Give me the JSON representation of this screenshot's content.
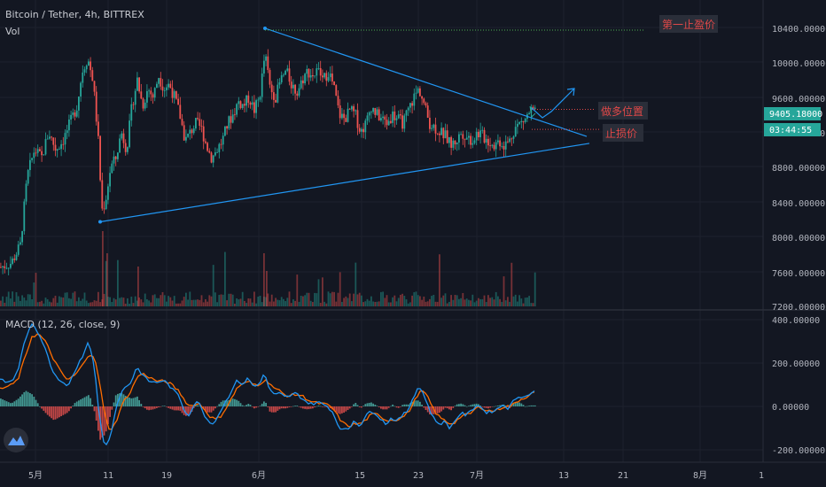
{
  "header": {
    "title": "Bitcoin / Tether, 4h, BITTREX",
    "volume_label": "Vol",
    "macd_label": "MACD (12, 26, close, 9)"
  },
  "price_axis": {
    "ticks": [
      "10400.00000",
      "10000.00000",
      "9600.00000",
      "9200.00000",
      "8800.00000",
      "8400.00000",
      "8000.00000",
      "7600.00000",
      "7200.00000"
    ],
    "current_price": "9405.18000",
    "countdown": "03:44:55"
  },
  "macd_axis": {
    "ticks": [
      "400.00000",
      "200.00000",
      "0.00000",
      "-200.00000"
    ]
  },
  "time_axis": {
    "ticks": [
      "5月",
      "11",
      "19",
      "6月",
      "15",
      "23",
      "7月",
      "13",
      "21",
      "8月",
      "1"
    ]
  },
  "annotations": {
    "take_profit": "第一止盈价",
    "long_entry": "做多位置",
    "stop_loss": "止损价"
  },
  "colors": {
    "up": "#26a69a",
    "down": "#ef5350",
    "trendline": "#2196f3",
    "macd": "#2196f3",
    "signal": "#ff6d00",
    "background": "#131722"
  },
  "chart_data": {
    "type": "candlestick",
    "symbol": "Bitcoin / Tether",
    "interval": "4h",
    "exchange": "BITTREX",
    "price_range": [
      7200,
      10600
    ],
    "macd_range": [
      -230,
      420
    ],
    "trendlines": {
      "descending": {
        "from": {
          "date": "6月1",
          "price": 10390
        },
        "to": {
          "date": "7月17",
          "price": 9150
        }
      },
      "ascending": {
        "from": {
          "date": "5月10",
          "price": 8170
        },
        "to": {
          "date": "7月17",
          "price": 9070
        }
      },
      "take_profit_level": 10370,
      "long_entry_level": 9460,
      "stop_loss_level": 9230
    },
    "price_path": [
      [
        0,
        7650
      ],
      [
        12,
        7700
      ],
      [
        22,
        7900
      ],
      [
        30,
        8700
      ],
      [
        38,
        9000
      ],
      [
        46,
        8900
      ],
      [
        54,
        9200
      ],
      [
        62,
        9000
      ],
      [
        70,
        9100
      ],
      [
        78,
        9300
      ],
      [
        86,
        9500
      ],
      [
        92,
        9900
      ],
      [
        98,
        10050
      ],
      [
        104,
        9800
      ],
      [
        110,
        9100
      ],
      [
        114,
        8300
      ],
      [
        118,
        8400
      ],
      [
        124,
        8800
      ],
      [
        130,
        8900
      ],
      [
        136,
        9200
      ],
      [
        142,
        9000
      ],
      [
        148,
        9500
      ],
      [
        154,
        9800
      ],
      [
        160,
        9500
      ],
      [
        166,
        9700
      ],
      [
        172,
        9600
      ],
      [
        178,
        9850
      ],
      [
        184,
        9700
      ],
      [
        190,
        9750
      ],
      [
        196,
        9600
      ],
      [
        202,
        9400
      ],
      [
        208,
        9100
      ],
      [
        214,
        9200
      ],
      [
        220,
        9300
      ],
      [
        226,
        9250
      ],
      [
        232,
        9050
      ],
      [
        238,
        8900
      ],
      [
        244,
        9000
      ],
      [
        250,
        9100
      ],
      [
        256,
        9300
      ],
      [
        262,
        9400
      ],
      [
        268,
        9550
      ],
      [
        274,
        9500
      ],
      [
        280,
        9600
      ],
      [
        286,
        9450
      ],
      [
        292,
        9600
      ],
      [
        298,
        10100
      ],
      [
        304,
        9700
      ],
      [
        310,
        9600
      ],
      [
        316,
        9800
      ],
      [
        322,
        9900
      ],
      [
        328,
        9750
      ],
      [
        334,
        9650
      ],
      [
        340,
        9800
      ],
      [
        346,
        9900
      ],
      [
        352,
        9850
      ],
      [
        358,
        9900
      ],
      [
        364,
        9800
      ],
      [
        370,
        9900
      ],
      [
        376,
        9700
      ],
      [
        382,
        9400
      ],
      [
        388,
        9350
      ],
      [
        394,
        9450
      ],
      [
        400,
        9400
      ],
      [
        406,
        9200
      ],
      [
        412,
        9300
      ],
      [
        418,
        9500
      ],
      [
        424,
        9400
      ],
      [
        430,
        9350
      ],
      [
        436,
        9300
      ],
      [
        442,
        9400
      ],
      [
        448,
        9350
      ],
      [
        454,
        9300
      ],
      [
        460,
        9450
      ],
      [
        466,
        9600
      ],
      [
        472,
        9700
      ],
      [
        478,
        9500
      ],
      [
        484,
        9300
      ],
      [
        490,
        9250
      ],
      [
        496,
        9200
      ],
      [
        502,
        9150
      ],
      [
        508,
        9050
      ],
      [
        514,
        9100
      ],
      [
        520,
        9200
      ],
      [
        526,
        9150
      ],
      [
        532,
        9100
      ],
      [
        538,
        9200
      ],
      [
        544,
        9150
      ],
      [
        550,
        9100
      ],
      [
        556,
        9050
      ],
      [
        562,
        9100
      ],
      [
        568,
        9050
      ],
      [
        574,
        9100
      ],
      [
        580,
        9250
      ],
      [
        586,
        9300
      ],
      [
        592,
        9350
      ],
      [
        598,
        9450
      ],
      [
        604,
        9405
      ]
    ],
    "macd_path": [
      [
        0,
        120
      ],
      [
        12,
        110
      ],
      [
        20,
        160
      ],
      [
        28,
        300
      ],
      [
        36,
        380
      ],
      [
        44,
        330
      ],
      [
        52,
        250
      ],
      [
        60,
        150
      ],
      [
        68,
        110
      ],
      [
        76,
        90
      ],
      [
        84,
        160
      ],
      [
        92,
        220
      ],
      [
        100,
        300
      ],
      [
        106,
        200
      ],
      [
        112,
        -50
      ],
      [
        118,
        -180
      ],
      [
        124,
        -150
      ],
      [
        130,
        -20
      ],
      [
        136,
        60
      ],
      [
        142,
        90
      ],
      [
        148,
        110
      ],
      [
        154,
        180
      ],
      [
        160,
        150
      ],
      [
        166,
        120
      ],
      [
        172,
        110
      ],
      [
        178,
        110
      ],
      [
        184,
        120
      ],
      [
        190,
        100
      ],
      [
        196,
        70
      ],
      [
        202,
        50
      ],
      [
        208,
        -20
      ],
      [
        214,
        -40
      ],
      [
        220,
        20
      ],
      [
        226,
        10
      ],
      [
        232,
        -50
      ],
      [
        238,
        -80
      ],
      [
        244,
        -60
      ],
      [
        250,
        -10
      ],
      [
        256,
        30
      ],
      [
        262,
        80
      ],
      [
        268,
        120
      ],
      [
        274,
        100
      ],
      [
        280,
        130
      ],
      [
        286,
        90
      ],
      [
        292,
        100
      ],
      [
        298,
        150
      ],
      [
        304,
        80
      ],
      [
        310,
        50
      ],
      [
        316,
        60
      ],
      [
        322,
        40
      ],
      [
        328,
        50
      ],
      [
        334,
        60
      ],
      [
        340,
        40
      ],
      [
        346,
        20
      ],
      [
        352,
        10
      ],
      [
        358,
        20
      ],
      [
        364,
        10
      ],
      [
        370,
        0
      ],
      [
        376,
        -30
      ],
      [
        382,
        -90
      ],
      [
        388,
        -110
      ],
      [
        394,
        -100
      ],
      [
        400,
        -60
      ],
      [
        406,
        -90
      ],
      [
        412,
        -50
      ],
      [
        418,
        -20
      ],
      [
        424,
        -30
      ],
      [
        430,
        -60
      ],
      [
        436,
        -80
      ],
      [
        442,
        -50
      ],
      [
        448,
        -70
      ],
      [
        454,
        -40
      ],
      [
        460,
        -20
      ],
      [
        466,
        40
      ],
      [
        472,
        90
      ],
      [
        478,
        60
      ],
      [
        484,
        -10
      ],
      [
        490,
        -60
      ],
      [
        496,
        -80
      ],
      [
        502,
        -70
      ],
      [
        508,
        -100
      ],
      [
        514,
        -60
      ],
      [
        520,
        -30
      ],
      [
        526,
        -40
      ],
      [
        532,
        -20
      ],
      [
        538,
        10
      ],
      [
        544,
        -10
      ],
      [
        550,
        -30
      ],
      [
        556,
        -20
      ],
      [
        562,
        -10
      ],
      [
        568,
        10
      ],
      [
        574,
        -10
      ],
      [
        580,
        30
      ],
      [
        586,
        50
      ],
      [
        592,
        40
      ],
      [
        598,
        60
      ],
      [
        604,
        70
      ]
    ],
    "signal_path": [
      [
        0,
        80
      ],
      [
        12,
        95
      ],
      [
        20,
        120
      ],
      [
        28,
        220
      ],
      [
        36,
        320
      ],
      [
        44,
        330
      ],
      [
        52,
        290
      ],
      [
        60,
        220
      ],
      [
        68,
        160
      ],
      [
        76,
        120
      ],
      [
        84,
        140
      ],
      [
        92,
        180
      ],
      [
        100,
        240
      ],
      [
        106,
        230
      ],
      [
        112,
        120
      ],
      [
        118,
        -40
      ],
      [
        124,
        -110
      ],
      [
        130,
        -80
      ],
      [
        136,
        -10
      ],
      [
        142,
        40
      ],
      [
        148,
        70
      ],
      [
        154,
        130
      ],
      [
        160,
        150
      ],
      [
        166,
        140
      ],
      [
        172,
        125
      ],
      [
        178,
        115
      ],
      [
        184,
        115
      ],
      [
        190,
        110
      ],
      [
        196,
        90
      ],
      [
        202,
        70
      ],
      [
        208,
        30
      ],
      [
        214,
        0
      ],
      [
        220,
        10
      ],
      [
        226,
        10
      ],
      [
        232,
        -20
      ],
      [
        238,
        -50
      ],
      [
        244,
        -60
      ],
      [
        250,
        -40
      ],
      [
        256,
        0
      ],
      [
        262,
        40
      ],
      [
        268,
        90
      ],
      [
        274,
        100
      ],
      [
        280,
        115
      ],
      [
        286,
        100
      ],
      [
        292,
        100
      ],
      [
        298,
        120
      ],
      [
        304,
        110
      ],
      [
        310,
        80
      ],
      [
        316,
        70
      ],
      [
        322,
        50
      ],
      [
        328,
        50
      ],
      [
        334,
        55
      ],
      [
        340,
        50
      ],
      [
        346,
        35
      ],
      [
        352,
        20
      ],
      [
        358,
        15
      ],
      [
        364,
        12
      ],
      [
        370,
        5
      ],
      [
        376,
        -10
      ],
      [
        382,
        -50
      ],
      [
        388,
        -80
      ],
      [
        394,
        -90
      ],
      [
        400,
        -80
      ],
      [
        406,
        -80
      ],
      [
        412,
        -65
      ],
      [
        418,
        -40
      ],
      [
        424,
        -35
      ],
      [
        430,
        -45
      ],
      [
        436,
        -65
      ],
      [
        442,
        -60
      ],
      [
        448,
        -60
      ],
      [
        454,
        -50
      ],
      [
        460,
        -30
      ],
      [
        466,
        10
      ],
      [
        472,
        60
      ],
      [
        478,
        70
      ],
      [
        484,
        30
      ],
      [
        490,
        -20
      ],
      [
        496,
        -50
      ],
      [
        502,
        -65
      ],
      [
        508,
        -80
      ],
      [
        514,
        -70
      ],
      [
        520,
        -45
      ],
      [
        526,
        -40
      ],
      [
        532,
        -30
      ],
      [
        538,
        -5
      ],
      [
        544,
        -5
      ],
      [
        550,
        -20
      ],
      [
        556,
        -20
      ],
      [
        562,
        -15
      ],
      [
        568,
        0
      ],
      [
        574,
        0
      ],
      [
        580,
        10
      ],
      [
        586,
        30
      ],
      [
        592,
        40
      ],
      [
        598,
        55
      ],
      [
        604,
        65
      ]
    ]
  }
}
